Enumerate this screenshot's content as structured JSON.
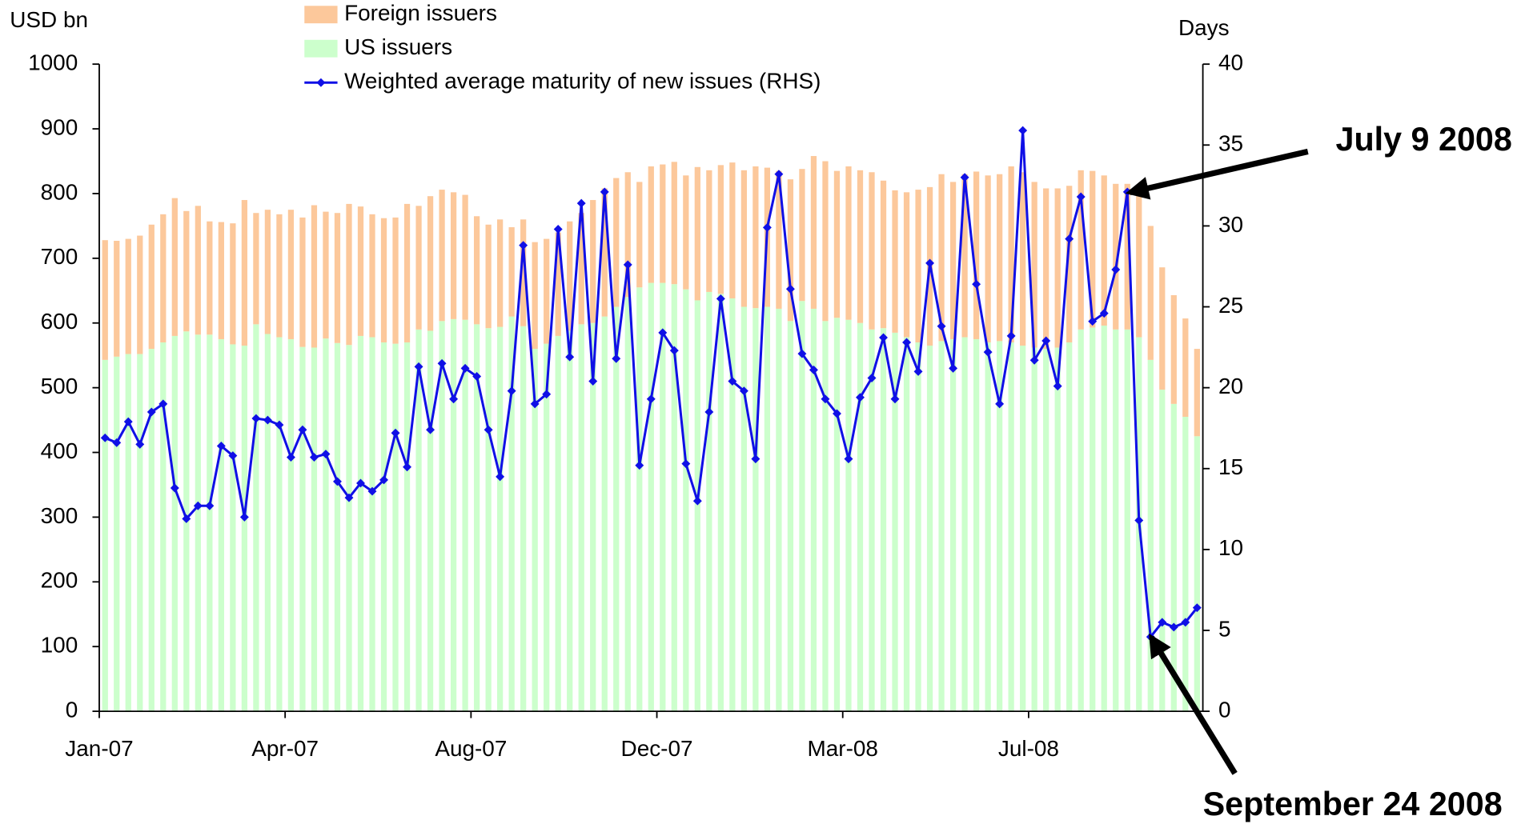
{
  "chart_data": {
    "type": "bar-line",
    "y_label": "USD bn",
    "y2_label": "Days",
    "categories": [
      "Jan-07",
      null,
      null,
      null,
      null,
      null,
      null,
      null,
      null,
      null,
      null,
      null,
      null,
      null,
      null,
      null,
      "Apr-07",
      null,
      null,
      null,
      null,
      null,
      null,
      null,
      null,
      null,
      null,
      null,
      null,
      null,
      null,
      null,
      "Aug-07",
      null,
      null,
      null,
      null,
      null,
      null,
      null,
      null,
      null,
      null,
      null,
      null,
      null,
      null,
      null,
      "Dec-07",
      null,
      null,
      null,
      null,
      null,
      null,
      null,
      null,
      null,
      null,
      null,
      null,
      null,
      null,
      null,
      "Mar-08",
      null,
      null,
      null,
      null,
      null,
      null,
      null,
      null,
      null,
      null,
      null,
      null,
      null,
      null,
      null,
      "Jul-08",
      null,
      null,
      null,
      null,
      null,
      null,
      null,
      null,
      null,
      null,
      null,
      null,
      null,
      null
    ],
    "series": [
      {
        "name": "Foreign issuers",
        "type": "bar",
        "color": "#fcc89b",
        "values": [
          185,
          179,
          178,
          183,
          192,
          198,
          213,
          186,
          199,
          175,
          181,
          187,
          225,
          172,
          192,
          190,
          200,
          200,
          220,
          196,
          201,
          218,
          200,
          190,
          192,
          195,
          214,
          191,
          208,
          203,
          196,
          193,
          167,
          160,
          166,
          138,
          165,
          165,
          162,
          160,
          169,
          172,
          190,
          198,
          199,
          193,
          163,
          180,
          183,
          189,
          176,
          206,
          188,
          199,
          210,
          211,
          219,
          215,
          213,
          219,
          204,
          236,
          247,
          227,
          237,
          236,
          243,
          228,
          220,
          224,
          236,
          245,
          258,
          243,
          252,
          259,
          258,
          258,
          272,
          268,
          256,
          248,
          246,
          242,
          246,
          242,
          232,
          225,
          225,
          228,
          207,
          189,
          168,
          152,
          135
        ]
      },
      {
        "name": "US issuers",
        "type": "bar",
        "color": "#ccffcc",
        "values": [
          543,
          548,
          552,
          552,
          560,
          570,
          580,
          587,
          582,
          582,
          575,
          567,
          565,
          598,
          583,
          578,
          575,
          563,
          562,
          576,
          569,
          566,
          580,
          578,
          570,
          568,
          570,
          590,
          588,
          603,
          606,
          605,
          598,
          592,
          594,
          610,
          595,
          560,
          568,
          580,
          588,
          598,
          600,
          610,
          625,
          640,
          655,
          662,
          662,
          660,
          652,
          635,
          648,
          645,
          638,
          625,
          623,
          625,
          622,
          603,
          634,
          622,
          603,
          608,
          605,
          600,
          590,
          592,
          585,
          578,
          570,
          565,
          572,
          575,
          578,
          575,
          570,
          572,
          570,
          565,
          562,
          560,
          562,
          570,
          590,
          593,
          596,
          590,
          590,
          578,
          543,
          497,
          475,
          455,
          425
        ]
      },
      {
        "name": "Weighted average maturity of new issues (RHS)",
        "type": "line",
        "axis": "y2",
        "color": "#1010e6",
        "values": [
          16.9,
          16.6,
          17.9,
          16.5,
          18.5,
          19.0,
          13.8,
          11.9,
          12.7,
          12.7,
          16.4,
          15.8,
          12.0,
          18.1,
          18.0,
          17.7,
          15.7,
          17.4,
          15.7,
          15.9,
          14.2,
          13.2,
          14.1,
          13.6,
          14.3,
          17.2,
          15.1,
          21.3,
          17.4,
          21.5,
          19.3,
          21.2,
          20.7,
          17.4,
          14.5,
          19.8,
          28.8,
          19.0,
          19.6,
          29.8,
          21.9,
          31.4,
          20.4,
          32.1,
          21.8,
          27.6,
          15.2,
          19.3,
          23.4,
          22.3,
          15.3,
          13.0,
          18.5,
          25.5,
          20.4,
          19.8,
          15.6,
          29.9,
          33.2,
          26.1,
          22.1,
          21.1,
          19.3,
          18.4,
          15.6,
          19.4,
          20.6,
          23.1,
          19.3,
          22.8,
          21.0,
          27.7,
          23.8,
          21.2,
          33.0,
          26.4,
          22.2,
          19.0,
          23.2,
          35.9,
          21.7,
          22.9,
          20.1,
          29.2,
          31.8,
          24.1,
          24.6,
          27.3,
          32.1,
          11.8,
          4.6,
          5.5,
          5.2,
          5.5,
          6.4
        ]
      }
    ],
    "ylim": [
      0,
      1000
    ],
    "yticks": [
      0,
      100,
      200,
      300,
      400,
      500,
      600,
      700,
      800,
      900,
      1000
    ],
    "y2lim": [
      0,
      40
    ],
    "y2ticks": [
      0,
      5,
      10,
      15,
      20,
      25,
      30,
      35,
      40
    ],
    "grid": false,
    "annotations": [
      {
        "text": "July 9 2008"
      },
      {
        "text": "September 24 2008"
      }
    ]
  }
}
